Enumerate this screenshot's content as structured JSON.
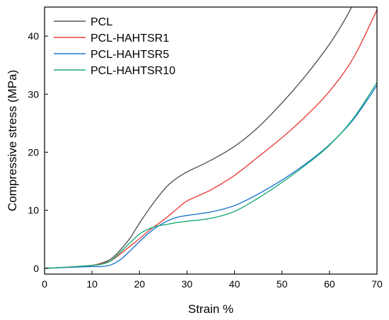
{
  "chart_data": {
    "type": "line",
    "title": "",
    "xlabel": "Strain %",
    "ylabel": "Compressive stress (MPa)",
    "xlim": [
      0,
      70
    ],
    "ylim": [
      -1,
      45
    ],
    "xticks": [
      0,
      10,
      20,
      30,
      40,
      50,
      60,
      70
    ],
    "yticks": [
      0,
      10,
      20,
      30,
      40
    ],
    "grid": false,
    "legend_position": "top-left",
    "series": [
      {
        "name": "PCL",
        "color": "#555555",
        "points": [
          [
            0,
            0
          ],
          [
            5,
            0.2
          ],
          [
            10,
            0.5
          ],
          [
            12,
            0.9
          ],
          [
            14,
            1.6
          ],
          [
            16,
            3.2
          ],
          [
            18,
            5.2
          ],
          [
            20,
            7.8
          ],
          [
            22,
            10.2
          ],
          [
            24,
            12.4
          ],
          [
            26,
            14.3
          ],
          [
            28,
            15.6
          ],
          [
            30,
            16.6
          ],
          [
            35,
            18.6
          ],
          [
            40,
            21
          ],
          [
            45,
            24.3
          ],
          [
            50,
            28.5
          ],
          [
            55,
            33.2
          ],
          [
            60,
            38.6
          ],
          [
            63,
            42.5
          ],
          [
            65,
            45.5
          ]
        ]
      },
      {
        "name": "PCL-HAHTSR1",
        "color": "#e8413c",
        "points": [
          [
            0,
            0
          ],
          [
            5,
            0.2
          ],
          [
            10,
            0.5
          ],
          [
            12,
            0.8
          ],
          [
            14,
            1.3
          ],
          [
            16,
            2.5
          ],
          [
            18,
            3.8
          ],
          [
            20,
            5.1
          ],
          [
            22,
            6.5
          ],
          [
            25,
            8.3
          ],
          [
            28,
            10.3
          ],
          [
            30,
            11.6
          ],
          [
            35,
            13.5
          ],
          [
            40,
            16
          ],
          [
            45,
            19.2
          ],
          [
            50,
            22.5
          ],
          [
            55,
            26.2
          ],
          [
            60,
            30.5
          ],
          [
            65,
            36.2
          ],
          [
            70,
            44.5
          ]
        ]
      },
      {
        "name": "PCL-HAHTSR5",
        "color": "#1f77d0",
        "points": [
          [
            0,
            0
          ],
          [
            5,
            0.15
          ],
          [
            10,
            0.3
          ],
          [
            12,
            0.3
          ],
          [
            14,
            0.6
          ],
          [
            16,
            1.5
          ],
          [
            18,
            3
          ],
          [
            20,
            4.6
          ],
          [
            22,
            6.1
          ],
          [
            24,
            7.3
          ],
          [
            26,
            8.2
          ],
          [
            28,
            8.8
          ],
          [
            30,
            9.1
          ],
          [
            35,
            9.7
          ],
          [
            40,
            10.8
          ],
          [
            45,
            12.8
          ],
          [
            50,
            15.2
          ],
          [
            55,
            18
          ],
          [
            60,
            21.3
          ],
          [
            65,
            25.6
          ],
          [
            70,
            31.5
          ]
        ]
      },
      {
        "name": "PCL-HAHTSR10",
        "color": "#1aab76",
        "points": [
          [
            0,
            0
          ],
          [
            5,
            0.2
          ],
          [
            10,
            0.5
          ],
          [
            12,
            0.7
          ],
          [
            14,
            1.3
          ],
          [
            16,
            2.8
          ],
          [
            18,
            4.4
          ],
          [
            20,
            5.9
          ],
          [
            22,
            6.8
          ],
          [
            24,
            7.3
          ],
          [
            26,
            7.6
          ],
          [
            28,
            7.9
          ],
          [
            30,
            8.1
          ],
          [
            35,
            8.6
          ],
          [
            40,
            9.8
          ],
          [
            45,
            12.1
          ],
          [
            50,
            14.8
          ],
          [
            55,
            17.8
          ],
          [
            60,
            21.2
          ],
          [
            65,
            25.8
          ],
          [
            70,
            32
          ]
        ]
      }
    ]
  }
}
